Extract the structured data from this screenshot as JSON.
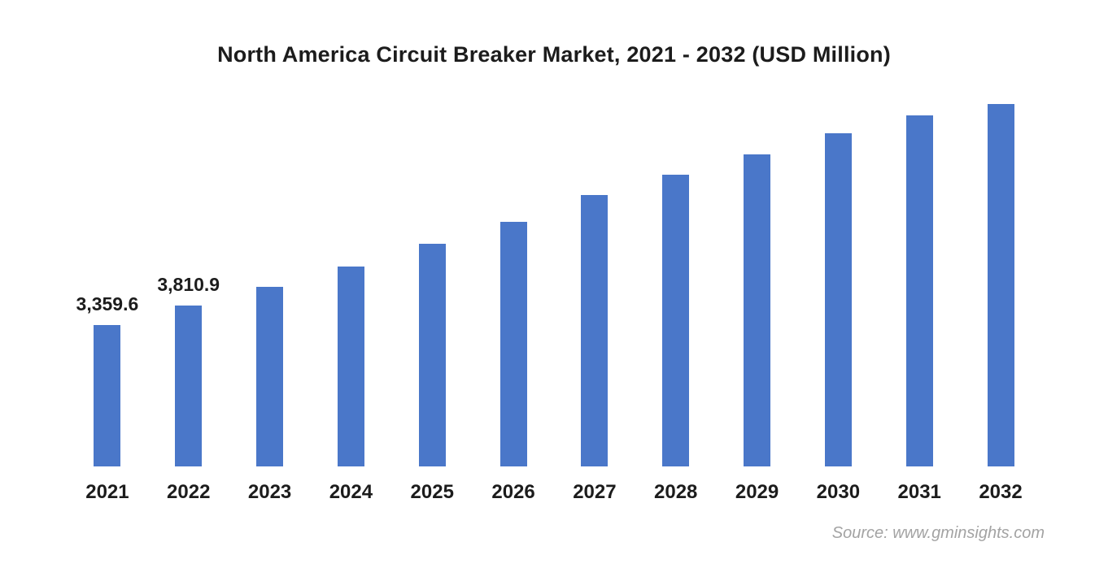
{
  "colors": {
    "bar": "#4a77c9",
    "text": "#1c1c1c",
    "source_text": "#a3a3a3",
    "background": "#ffffff"
  },
  "source": {
    "text": "Source: www.gminsights.com"
  },
  "chart_data": {
    "type": "bar",
    "title": "North America Circuit Breaker Market, 2021 - 2032 (USD Million)",
    "categories": [
      "2021",
      "2022",
      "2023",
      "2024",
      "2025",
      "2026",
      "2027",
      "2028",
      "2029",
      "2030",
      "2031",
      "2032"
    ],
    "values": [
      3359.6,
      3810.9,
      4270,
      4750,
      5290,
      5810,
      6450,
      6930,
      7410,
      7910,
      8340,
      8610
    ],
    "data_labels": {
      "2021": "3,359.6",
      "2022": "3,810.9"
    },
    "xlabel": "",
    "ylabel": "",
    "ylim": [
      0,
      9200
    ],
    "grid": false,
    "legend": "none",
    "axis_lines": "none"
  }
}
